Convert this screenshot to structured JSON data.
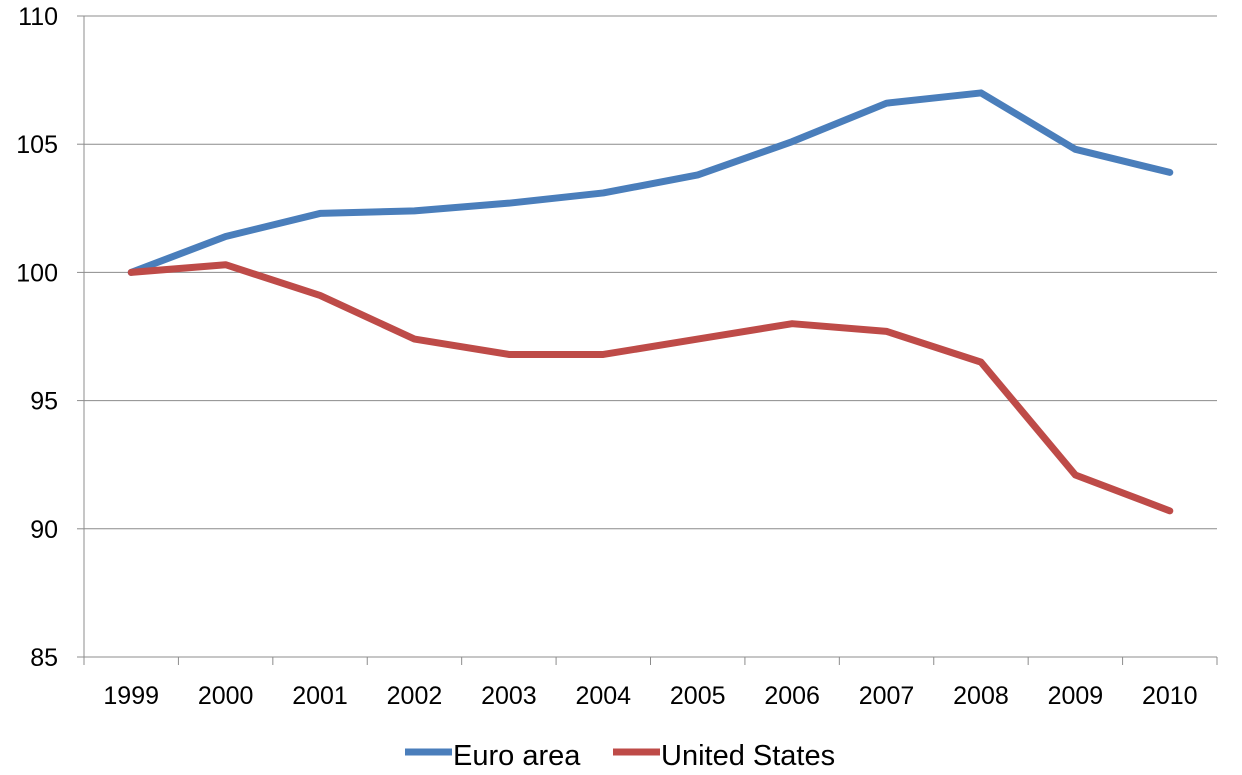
{
  "chart_data": {
    "type": "line",
    "title": "",
    "xlabel": "",
    "ylabel": "",
    "categories": [
      "1999",
      "2000",
      "2001",
      "2002",
      "2003",
      "2004",
      "2005",
      "2006",
      "2007",
      "2008",
      "2009",
      "2010"
    ],
    "ylim": [
      85,
      110
    ],
    "yticks": [
      85,
      90,
      95,
      100,
      105,
      110
    ],
    "grid": true,
    "legend_position": "bottom",
    "series": [
      {
        "name": "Euro area",
        "color": "#4a7ebb",
        "values": [
          100.0,
          101.4,
          102.3,
          102.4,
          102.7,
          103.1,
          103.8,
          105.1,
          106.6,
          107.0,
          104.8,
          103.9
        ]
      },
      {
        "name": "United States",
        "color": "#be4b48",
        "values": [
          100.0,
          100.3,
          99.1,
          97.4,
          96.8,
          96.8,
          97.4,
          98.0,
          97.7,
          96.5,
          92.1,
          90.7
        ]
      }
    ]
  }
}
